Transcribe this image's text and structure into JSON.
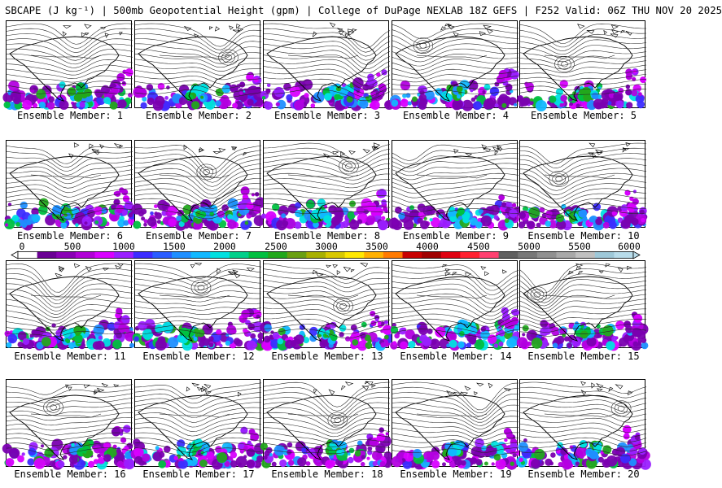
{
  "title": "SBCAPE (J kg⁻¹) | 500mb Geopotential Height (gpm) | College of DuPage NEXLAB 18Z GEFS | F252 Valid: 06Z THU NOV 20 2025",
  "panels": [
    {
      "label": "Ensemble Member: 1"
    },
    {
      "label": "Ensemble Member: 2"
    },
    {
      "label": "Ensemble Member: 3"
    },
    {
      "label": "Ensemble Member: 4"
    },
    {
      "label": "Ensemble Member: 5"
    },
    {
      "label": "Ensemble Member: 6"
    },
    {
      "label": "Ensemble Member: 7"
    },
    {
      "label": "Ensemble Member: 8"
    },
    {
      "label": "Ensemble Member: 9"
    },
    {
      "label": "Ensemble Member: 10"
    },
    {
      "label": "Ensemble Member: 11"
    },
    {
      "label": "Ensemble Member: 12"
    },
    {
      "label": "Ensemble Member: 13"
    },
    {
      "label": "Ensemble Member: 14"
    },
    {
      "label": "Ensemble Member: 15"
    },
    {
      "label": "Ensemble Member: 16"
    },
    {
      "label": "Ensemble Member: 17"
    },
    {
      "label": "Ensemble Member: 18"
    },
    {
      "label": "Ensemble Member: 19"
    },
    {
      "label": "Ensemble Member: 20"
    }
  ],
  "colorbar": {
    "ticks": [
      "0",
      "500",
      "1000",
      "1500",
      "2000",
      "2500",
      "3000",
      "3500",
      "4000",
      "4500",
      "5000",
      "5500",
      "6000"
    ],
    "colors": [
      "#ffffff",
      "#6a0094",
      "#8a00b5",
      "#b000d6",
      "#d800ff",
      "#9a1fff",
      "#3c2cff",
      "#2a5cff",
      "#1f8fff",
      "#10b8ff",
      "#00e0e0",
      "#00d08a",
      "#00c040",
      "#22a81c",
      "#6aa012",
      "#a8b000",
      "#d8c800",
      "#ffe800",
      "#ffb000",
      "#ff7a00",
      "#c80000",
      "#a00000",
      "#e00010",
      "#ff2030",
      "#ff4070",
      "#606060",
      "#787878",
      "#909090",
      "#a8a8a8",
      "#c0c0c0",
      "#9ec8d8",
      "#b8dcea"
    ]
  }
}
